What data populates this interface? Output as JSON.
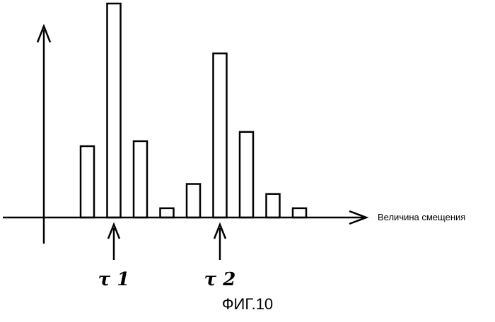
{
  "chart_data": {
    "type": "bar",
    "xlabel": "Величина смещения",
    "ylabel": "",
    "values": [
      100,
      300,
      107,
      13,
      47,
      230,
      120,
      33,
      13
    ],
    "ylim": [
      0,
      300
    ],
    "markers": [
      {
        "label": "τ 1",
        "at_bar": 1
      },
      {
        "label": "τ 2",
        "at_bar": 5
      }
    ],
    "grid": false,
    "legend": "none"
  },
  "figure": {
    "caption": "ФИГ.10"
  }
}
